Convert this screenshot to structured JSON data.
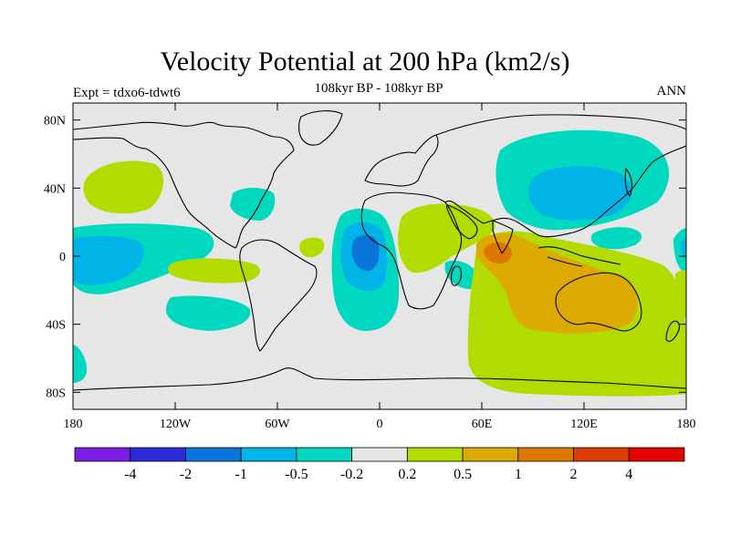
{
  "title": "Velocity Potential at 200 hPa (km2/s)",
  "subtitle": "108kyr BP - 108kyr BP",
  "left_label": "Expt = tdxo6-tdwt6",
  "right_label": "ANN",
  "colors": {
    "land_fill": "#e6e6e6",
    "coast": "#000000",
    "lt_m4": "#7a1ee0",
    "m4_m2": "#2a2ad8",
    "m2_m1": "#0a74d8",
    "m1_m05": "#00b4e8",
    "m05_m02": "#00d8c0",
    "m02_02": "#e6e6e6",
    "p02_p05": "#b2dc00",
    "p05_p1": "#dcaa00",
    "p1_p2": "#dc7800",
    "p2_p4": "#dc3c00",
    "gt_p4": "#e60000"
  },
  "chart_data": {
    "type": "contour-map",
    "projection": "cylindrical-equidistant",
    "lon_range": [
      -180,
      180
    ],
    "lat_range": [
      -90,
      90
    ],
    "x_ticks": [
      "180",
      "120W",
      "60W",
      "0",
      "60E",
      "120E",
      "180"
    ],
    "x_tick_values": [
      -180,
      -120,
      -60,
      0,
      60,
      120,
      180
    ],
    "y_ticks": [
      "80N",
      "40N",
      "0",
      "40S",
      "80S"
    ],
    "y_tick_values": [
      80,
      40,
      0,
      -40,
      -80
    ],
    "colorbar": {
      "labels": [
        "-4",
        "-2",
        "-1",
        "-0.5",
        "-0.2",
        "0.2",
        "0.5",
        "1",
        "2",
        "4"
      ],
      "colors": [
        "#7a1ee0",
        "#2a2ad8",
        "#0a74d8",
        "#00b4e8",
        "#00d8c0",
        "#e6e6e6",
        "#b2dc00",
        "#dcaa00",
        "#dc7800",
        "#dc3c00",
        "#e60000"
      ]
    },
    "features": [
      {
        "name": "N Pacific positive anomaly",
        "class": "0.2 to 0.5",
        "center": [
          -142,
          42
        ]
      },
      {
        "name": "Tropical E Pacific negative anomaly",
        "class": "-0.5 to -0.2",
        "center": [
          -160,
          0
        ]
      },
      {
        "name": "Subtropical Pacific positive band",
        "class": "0.2 to 0.5",
        "center": [
          -95,
          -8
        ]
      },
      {
        "name": "S Pacific negative anomaly",
        "class": "-0.5 to -0.2",
        "center": [
          -100,
          -33
        ]
      },
      {
        "name": "Tropical Atlantic/Africa negative center",
        "class": "-2 to -1",
        "center": [
          -7,
          0
        ]
      },
      {
        "name": "E Asia / NW Pacific negative center",
        "class": "-1 to -0.5",
        "center": [
          115,
          38
        ]
      },
      {
        "name": "Indian Ocean / Australia positive center",
        "class": "1 to 2",
        "center": [
          68,
          4
        ]
      },
      {
        "name": "Indo-Australian positive region",
        "class": "0.5 to 1",
        "center": [
          110,
          -28
        ]
      },
      {
        "name": "Southern Ocean positive region",
        "class": "0.2 to 0.5",
        "center": [
          120,
          -60
        ]
      },
      {
        "name": "E Africa / Arabia positive",
        "class": "0.2 to 0.5",
        "center": [
          40,
          5
        ]
      }
    ]
  }
}
